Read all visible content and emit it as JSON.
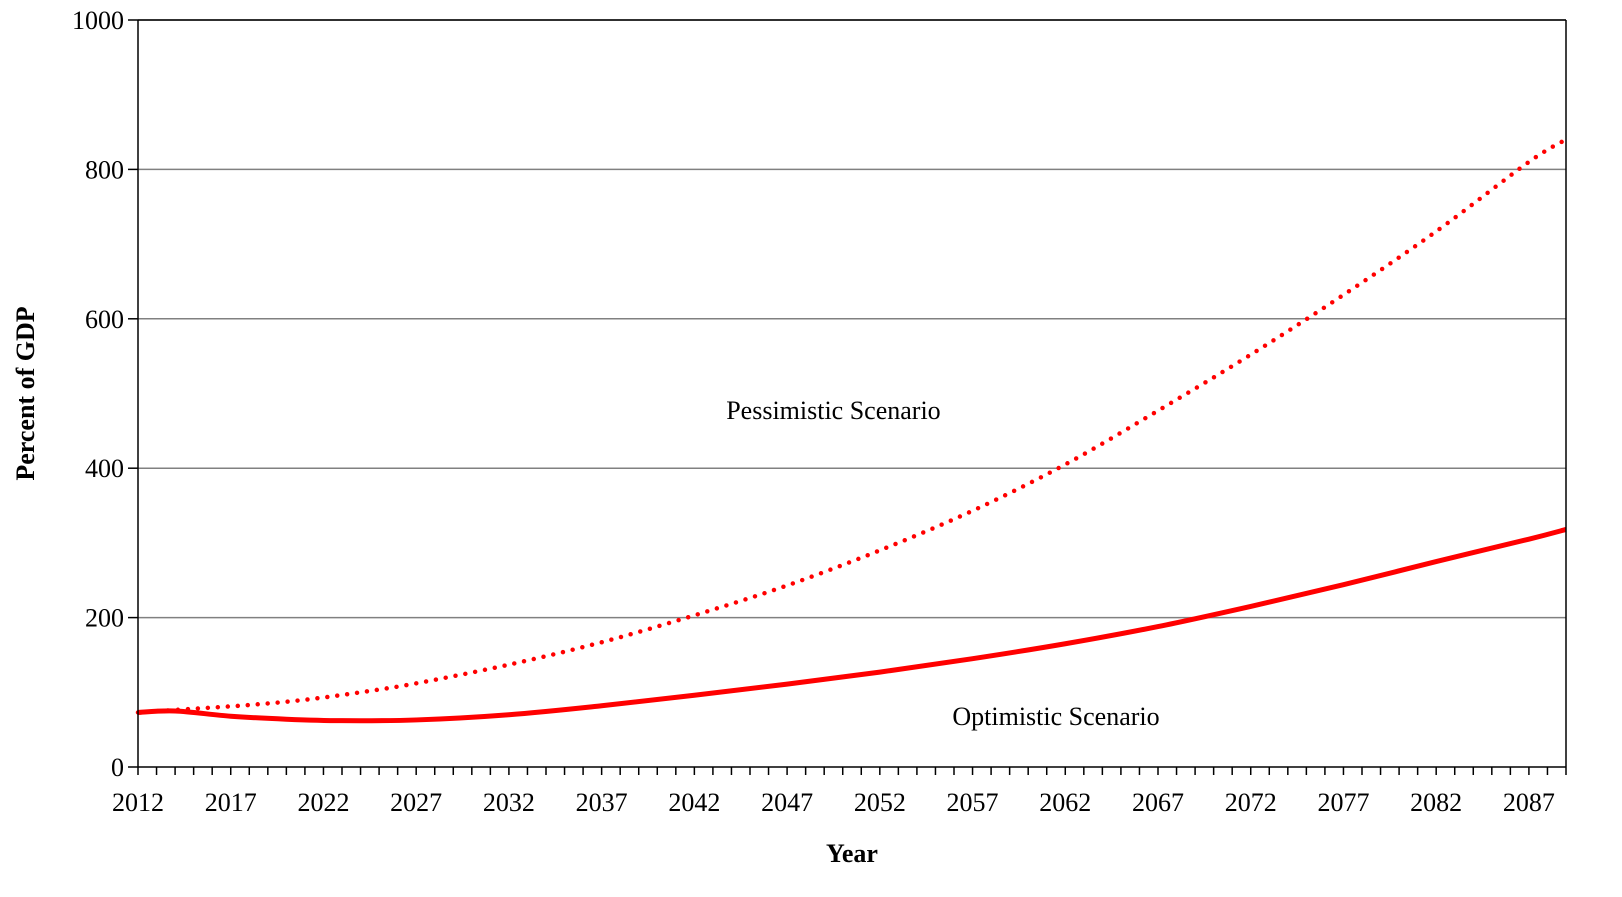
{
  "chart_data": {
    "type": "line",
    "xlabel": "Year",
    "ylabel": "Percent of GDP",
    "xlim": [
      2012,
      2089
    ],
    "ylim": [
      0,
      1000
    ],
    "yticks": [
      0,
      200,
      400,
      600,
      800,
      1000
    ],
    "xticks": [
      2012,
      2017,
      2022,
      2027,
      2032,
      2037,
      2042,
      2047,
      2052,
      2057,
      2062,
      2067,
      2072,
      2077,
      2082,
      2087
    ],
    "grid": "horizontal",
    "line_color": "#ff0000",
    "series": [
      {
        "name": "Pessimistic Scenario",
        "style": "dotted",
        "x": [
          2012,
          2015,
          2018,
          2021,
          2024,
          2027,
          2032,
          2037,
          2042,
          2047,
          2052,
          2057,
          2062,
          2067,
          2072,
          2077,
          2082,
          2087,
          2089
        ],
        "y": [
          73,
          78,
          83,
          90,
          100,
          112,
          137,
          167,
          203,
          243,
          290,
          343,
          405,
          477,
          552,
          632,
          717,
          810,
          840
        ]
      },
      {
        "name": "Optimistic Scenario",
        "style": "solid",
        "x": [
          2012,
          2014,
          2017,
          2020,
          2023,
          2027,
          2032,
          2037,
          2042,
          2047,
          2052,
          2057,
          2062,
          2067,
          2072,
          2077,
          2082,
          2087,
          2089
        ],
        "y": [
          73,
          75,
          68,
          64,
          62,
          63,
          70,
          82,
          96,
          111,
          127,
          145,
          165,
          188,
          215,
          244,
          275,
          305,
          318
        ]
      }
    ],
    "annotations": [
      {
        "text": "Pessimistic Scenario",
        "x": 2049.5,
        "y": 478
      },
      {
        "text": "Optimistic Scenario",
        "x": 2061.5,
        "y": 68
      }
    ]
  }
}
